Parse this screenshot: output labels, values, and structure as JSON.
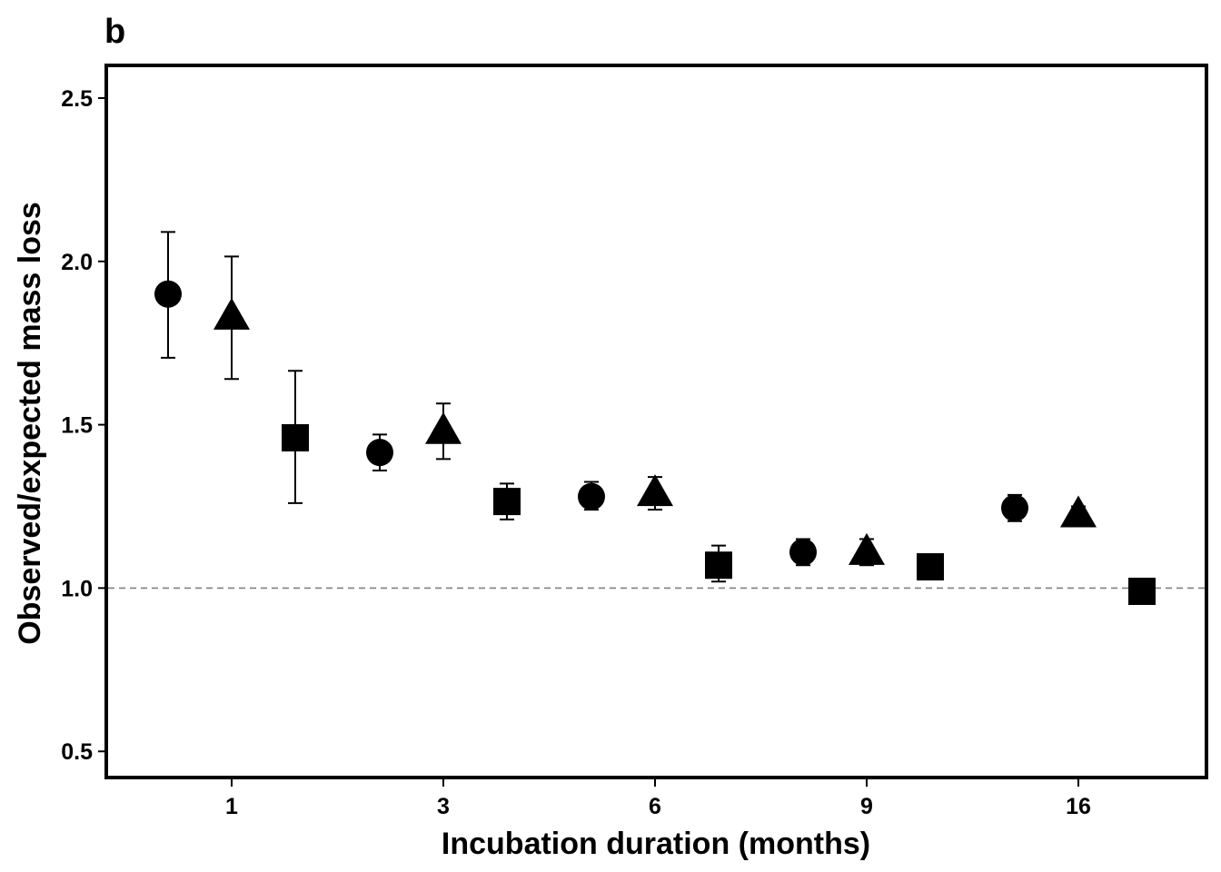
{
  "panel_label": "b",
  "chart_data": {
    "type": "scatter",
    "title": "",
    "xlabel": "Incubation duration (months)",
    "ylabel": "Observed/expected mass loss",
    "x_ticks": [
      "1",
      "3",
      "6",
      "9",
      "16"
    ],
    "y_ticks": [
      "0.5",
      "1.0",
      "1.5",
      "2.0",
      "2.5"
    ],
    "ylim": [
      0.42,
      2.6
    ],
    "reference_line": {
      "y": 1.0,
      "style": "dashed",
      "color": "#808080"
    },
    "grid": false,
    "legend": "none",
    "groups": [
      {
        "duration": "1",
        "points": [
          {
            "shape": "circle",
            "y": 1.9,
            "err_low": 1.705,
            "err_high": 2.09
          },
          {
            "shape": "triangle",
            "y": 1.83,
            "err_low": 1.64,
            "err_high": 2.015
          },
          {
            "shape": "square",
            "y": 1.46,
            "err_low": 1.26,
            "err_high": 1.665
          }
        ]
      },
      {
        "duration": "3",
        "points": [
          {
            "shape": "circle",
            "y": 1.415,
            "err_low": 1.36,
            "err_high": 1.47
          },
          {
            "shape": "triangle",
            "y": 1.48,
            "err_low": 1.395,
            "err_high": 1.565
          },
          {
            "shape": "square",
            "y": 1.265,
            "err_low": 1.21,
            "err_high": 1.32
          }
        ]
      },
      {
        "duration": "6",
        "points": [
          {
            "shape": "circle",
            "y": 1.28,
            "err_low": 1.24,
            "err_high": 1.325
          },
          {
            "shape": "triangle",
            "y": 1.29,
            "err_low": 1.24,
            "err_high": 1.34
          },
          {
            "shape": "square",
            "y": 1.07,
            "err_low": 1.02,
            "err_high": 1.13
          }
        ]
      },
      {
        "duration": "9",
        "points": [
          {
            "shape": "circle",
            "y": 1.11,
            "err_low": 1.07,
            "err_high": 1.15
          },
          {
            "shape": "triangle",
            "y": 1.11,
            "err_low": 1.07,
            "err_high": 1.15
          },
          {
            "shape": "square",
            "y": 1.065,
            "err_low": 1.035,
            "err_high": 1.095
          }
        ]
      },
      {
        "duration": "16",
        "points": [
          {
            "shape": "circle",
            "y": 1.245,
            "err_low": 1.205,
            "err_high": 1.285
          },
          {
            "shape": "triangle",
            "y": 1.225,
            "err_low": 1.2,
            "err_high": 1.25
          },
          {
            "shape": "square",
            "y": 0.99,
            "err_low": 0.98,
            "err_high": 1.0
          }
        ]
      }
    ]
  }
}
